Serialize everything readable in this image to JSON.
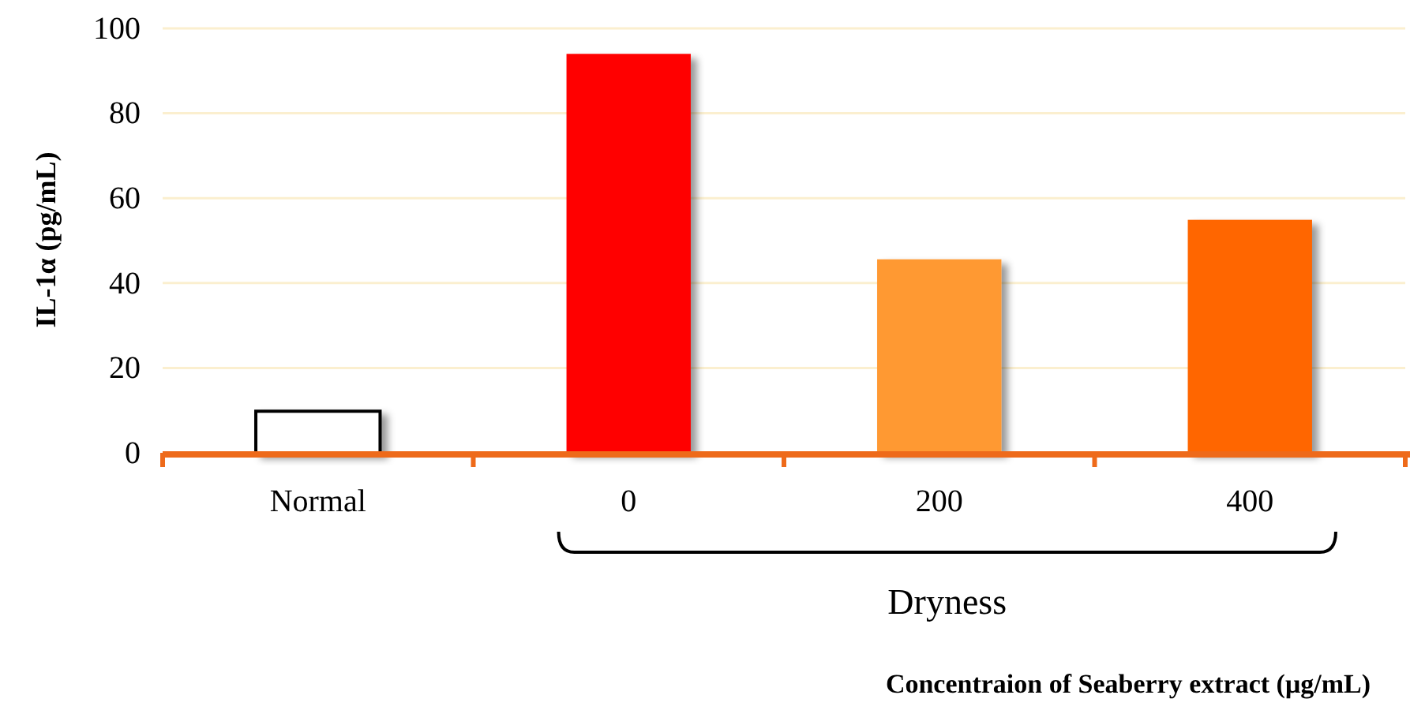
{
  "chart_data": {
    "type": "bar",
    "categories": [
      "Normal",
      "0",
      "200",
      "400"
    ],
    "values": [
      9.8,
      94.0,
      45.6,
      54.9
    ],
    "colors": [
      "#ffffff",
      "#ff0000",
      "#ff9933",
      "#ff6600"
    ],
    "ylabel": "IL-1α (pg/mL)",
    "annotations": [
      "Dryness",
      "Concentraion of Seaberry extract (μg/mL)"
    ],
    "ylim": [
      0,
      100
    ],
    "yticks": [
      0,
      20,
      40,
      60,
      80,
      100
    ],
    "grid": "y"
  }
}
